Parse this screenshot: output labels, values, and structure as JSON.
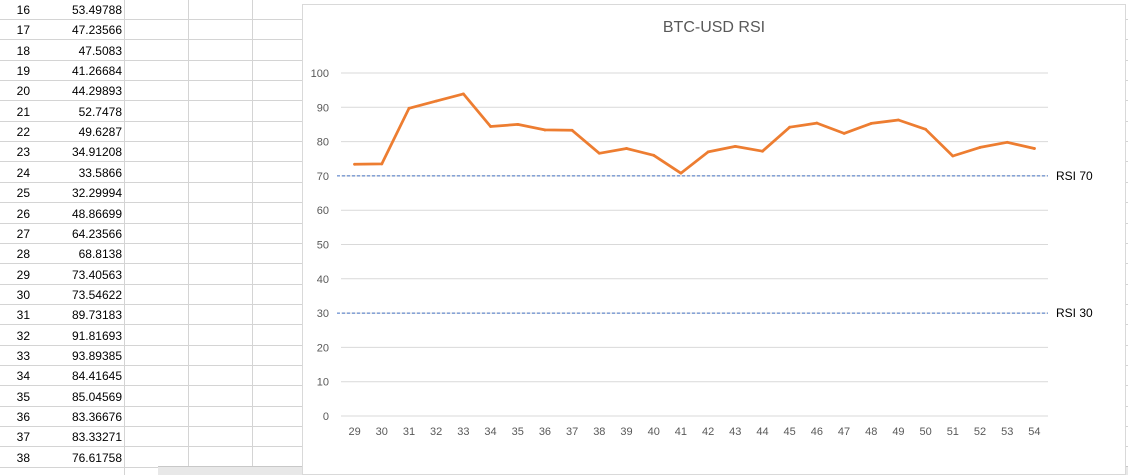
{
  "spreadsheet": {
    "rows": [
      {
        "n": "16",
        "v": "53.49788"
      },
      {
        "n": "17",
        "v": "47.23566"
      },
      {
        "n": "18",
        "v": "47.5083"
      },
      {
        "n": "19",
        "v": "41.26684"
      },
      {
        "n": "20",
        "v": "44.29893"
      },
      {
        "n": "21",
        "v": "52.7478"
      },
      {
        "n": "22",
        "v": "49.6287"
      },
      {
        "n": "23",
        "v": "34.91208"
      },
      {
        "n": "24",
        "v": "33.5866"
      },
      {
        "n": "25",
        "v": "32.29994"
      },
      {
        "n": "26",
        "v": "48.86699"
      },
      {
        "n": "27",
        "v": "64.23566"
      },
      {
        "n": "28",
        "v": "68.8138"
      },
      {
        "n": "29",
        "v": "73.40563"
      },
      {
        "n": "30",
        "v": "73.54622"
      },
      {
        "n": "31",
        "v": "89.73183"
      },
      {
        "n": "32",
        "v": "91.81693"
      },
      {
        "n": "33",
        "v": "93.89385"
      },
      {
        "n": "34",
        "v": "84.41645"
      },
      {
        "n": "35",
        "v": "85.04569"
      },
      {
        "n": "36",
        "v": "83.36676"
      },
      {
        "n": "37",
        "v": "83.33271"
      },
      {
        "n": "38",
        "v": "76.61758"
      }
    ]
  },
  "chart_data": {
    "type": "line",
    "title": "BTC-USD RSI",
    "xlabel": "",
    "ylabel": "",
    "ylim": [
      0,
      100
    ],
    "y_ticks": [
      0,
      10,
      20,
      30,
      40,
      50,
      60,
      70,
      80,
      90,
      100
    ],
    "categories": [
      "29",
      "30",
      "31",
      "32",
      "33",
      "34",
      "35",
      "36",
      "37",
      "38",
      "39",
      "40",
      "41",
      "42",
      "43",
      "44",
      "45",
      "46",
      "47",
      "48",
      "49",
      "50",
      "51",
      "52",
      "53",
      "54"
    ],
    "series": [
      {
        "values": [
          73.4,
          73.5,
          89.7,
          91.8,
          93.9,
          84.4,
          85.0,
          83.4,
          83.3,
          76.6,
          78.0,
          76.0,
          70.8,
          77.0,
          78.6,
          77.2,
          84.2,
          85.4,
          82.4,
          85.3,
          86.3,
          83.6,
          75.8,
          78.3,
          79.8,
          78.0
        ],
        "color": "#ed7d31"
      }
    ],
    "reference_lines": [
      {
        "name": "RSI 70",
        "value": 70,
        "color": "#4472c4",
        "style": "dashed"
      },
      {
        "name": "RSI 30",
        "value": 30,
        "color": "#4472c4",
        "style": "dashed"
      }
    ],
    "grid": true,
    "legend": "none"
  }
}
